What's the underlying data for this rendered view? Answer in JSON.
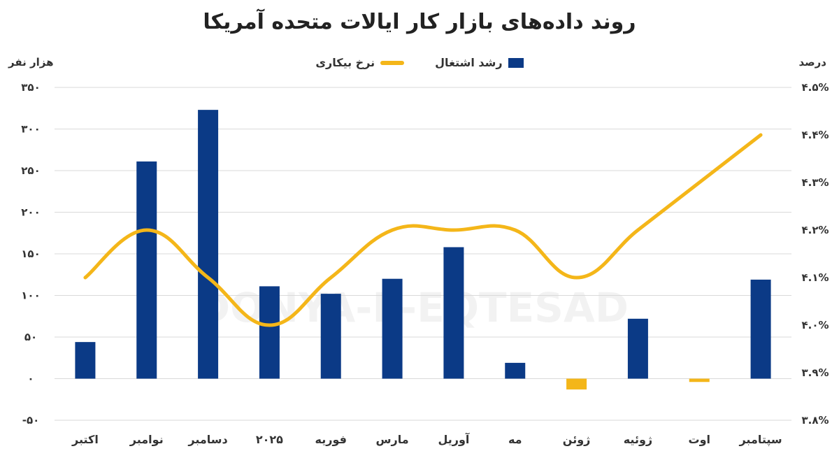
{
  "title": "روند داده‌های بازار کار ایالات متحده آمریکا",
  "left_unit": "هزار نفر",
  "right_unit": "درصد",
  "watermark_text": "DONYA-E-EQTESAD",
  "legend": {
    "bar_label": "رشد اشتغال",
    "line_label": "نرخ بیکاری"
  },
  "colors": {
    "bar": "#0b3a86",
    "bar_negative": "#f4b619",
    "line": "#f4b619",
    "grid": "#d9d9d9",
    "axis_text": "#333333"
  },
  "chart_data": {
    "type": "bar+line",
    "categories": [
      "اکتبر",
      "نوامبر",
      "دسامبر",
      "۲۰۲۵",
      "فوریه",
      "مارس",
      "آوریل",
      "مه",
      "ژوئن",
      "ژوئیه",
      "اوت",
      "سپتامبر"
    ],
    "series": [
      {
        "name": "رشد اشتغال",
        "type": "bar",
        "axis": "left",
        "values": [
          44,
          261,
          323,
          111,
          102,
          120,
          158,
          19,
          -13,
          72,
          -4,
          119
        ]
      },
      {
        "name": "نرخ بیکاری",
        "type": "line",
        "axis": "right",
        "values": [
          4.1,
          4.2,
          4.1,
          4.0,
          4.1,
          4.2,
          4.2,
          4.2,
          4.1,
          4.2,
          4.3,
          4.4
        ]
      }
    ],
    "left_axis": {
      "min": -50,
      "max": 350,
      "step": 50,
      "tick_labels": [
        "-۵۰",
        "۰",
        "۵۰",
        "۱۰۰",
        "۱۵۰",
        "۲۰۰",
        "۲۵۰",
        "۳۰۰",
        "۳۵۰"
      ]
    },
    "right_axis": {
      "min": 3.8,
      "max": 4.5,
      "step": 0.1,
      "tick_labels": [
        "۳.۸%",
        "۳.۹%",
        "۴.۰%",
        "۴.۱%",
        "۴.۲%",
        "۴.۳%",
        "۴.۴%",
        "۴.۵%"
      ]
    },
    "grid": true,
    "legend_position": "top-center"
  }
}
